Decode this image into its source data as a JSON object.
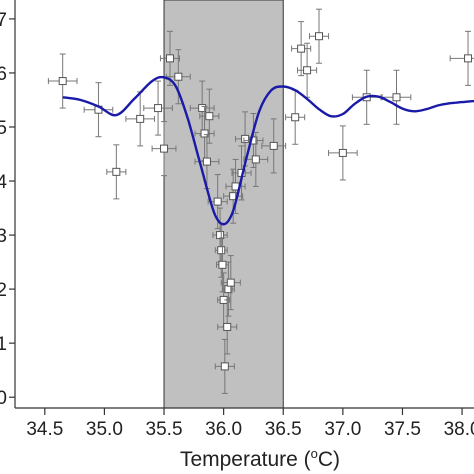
{
  "chart_data": {
    "type": "scatter",
    "title": "",
    "xlabel": "Temperature (",
    "xlabel_sup": "o",
    "xlabel_tail": "C)",
    "ylabel": "",
    "xlim": [
      34.25,
      38.1
    ],
    "ylim": [
      -0.2,
      7.35
    ],
    "x_ticks": [
      34.5,
      35.0,
      35.5,
      36.0,
      36.5,
      37.0,
      37.5,
      38.0
    ],
    "x_tick_labels": [
      "34.5",
      "35.0",
      "35.5",
      "36.0",
      "36.5",
      "37.0",
      "37.5",
      "38.0"
    ],
    "y_ticks": [
      0,
      1,
      2,
      3,
      4,
      5,
      6,
      7
    ],
    "y_tick_labels": [
      "0",
      "1",
      "2",
      "3",
      "4",
      "5",
      "6",
      "7"
    ],
    "grid": false,
    "shaded_region": {
      "x_start": 35.5,
      "x_end": 36.5,
      "color": "#c0c0c0"
    },
    "fit_curve": {
      "color": "#1a1aa8",
      "x": [
        34.65,
        34.8,
        34.95,
        35.1,
        35.25,
        35.4,
        35.5,
        35.6,
        35.7,
        35.8,
        35.9,
        35.95,
        36.0,
        36.05,
        36.1,
        36.2,
        36.3,
        36.4,
        36.5,
        36.6,
        36.7,
        36.8,
        36.9,
        37.0,
        37.1,
        37.2,
        37.3,
        37.4,
        37.5,
        37.6,
        37.7,
        37.8,
        37.9,
        38.0,
        38.1
      ],
      "y": [
        5.55,
        5.5,
        5.38,
        5.22,
        5.52,
        5.85,
        5.92,
        5.75,
        5.15,
        4.35,
        3.55,
        3.28,
        3.2,
        3.3,
        3.6,
        4.5,
        5.3,
        5.68,
        5.75,
        5.68,
        5.52,
        5.33,
        5.2,
        5.24,
        5.43,
        5.56,
        5.56,
        5.46,
        5.34,
        5.29,
        5.33,
        5.4,
        5.44,
        5.46,
        5.48
      ]
    },
    "points": [
      {
        "x": 34.65,
        "y": 5.85,
        "xerr": 0.12,
        "yerr": 0.5
      },
      {
        "x": 34.95,
        "y": 5.32,
        "xerr": 0.12,
        "yerr": 0.5
      },
      {
        "x": 35.1,
        "y": 4.17,
        "xerr": 0.08,
        "yerr": 0.5
      },
      {
        "x": 35.3,
        "y": 5.15,
        "xerr": 0.12,
        "yerr": 0.5
      },
      {
        "x": 35.45,
        "y": 5.35,
        "xerr": 0.12,
        "yerr": 0.5
      },
      {
        "x": 35.5,
        "y": 4.6,
        "xerr": 0.1,
        "yerr": 0.5
      },
      {
        "x": 35.55,
        "y": 6.27,
        "xerr": 0.08,
        "yerr": 0.5
      },
      {
        "x": 35.62,
        "y": 5.93,
        "xerr": 0.1,
        "yerr": 0.5
      },
      {
        "x": 35.82,
        "y": 5.35,
        "xerr": 0.1,
        "yerr": 0.5
      },
      {
        "x": 35.84,
        "y": 4.88,
        "xerr": 0.08,
        "yerr": 0.5
      },
      {
        "x": 35.86,
        "y": 4.36,
        "xerr": 0.1,
        "yerr": 0.5
      },
      {
        "x": 35.88,
        "y": 5.2,
        "xerr": 0.08,
        "yerr": 0.5
      },
      {
        "x": 35.95,
        "y": 3.62,
        "xerr": 0.08,
        "yerr": 0.5
      },
      {
        "x": 35.97,
        "y": 3.0,
        "xerr": 0.06,
        "yerr": 0.5
      },
      {
        "x": 35.98,
        "y": 2.72,
        "xerr": 0.05,
        "yerr": 0.5
      },
      {
        "x": 35.99,
        "y": 2.45,
        "xerr": 0.05,
        "yerr": 0.5
      },
      {
        "x": 36.0,
        "y": 1.8,
        "xerr": 0.05,
        "yerr": 0.5
      },
      {
        "x": 36.01,
        "y": 0.57,
        "xerr": 0.08,
        "yerr": 0.5
      },
      {
        "x": 36.03,
        "y": 1.3,
        "xerr": 0.08,
        "yerr": 0.5
      },
      {
        "x": 36.04,
        "y": 2.0,
        "xerr": 0.05,
        "yerr": 0.5
      },
      {
        "x": 36.06,
        "y": 2.12,
        "xerr": 0.08,
        "yerr": 0.5
      },
      {
        "x": 36.08,
        "y": 3.72,
        "xerr": 0.08,
        "yerr": 0.5
      },
      {
        "x": 36.1,
        "y": 3.9,
        "xerr": 0.08,
        "yerr": 0.5
      },
      {
        "x": 36.15,
        "y": 4.15,
        "xerr": 0.08,
        "yerr": 0.5
      },
      {
        "x": 36.18,
        "y": 4.78,
        "xerr": 0.08,
        "yerr": 0.5
      },
      {
        "x": 36.25,
        "y": 4.75,
        "xerr": 0.08,
        "yerr": 0.5
      },
      {
        "x": 36.27,
        "y": 4.4,
        "xerr": 0.1,
        "yerr": 0.5
      },
      {
        "x": 36.42,
        "y": 4.65,
        "xerr": 0.1,
        "yerr": 0.5
      },
      {
        "x": 36.6,
        "y": 5.18,
        "xerr": 0.08,
        "yerr": 0.5
      },
      {
        "x": 36.65,
        "y": 6.45,
        "xerr": 0.08,
        "yerr": 0.5
      },
      {
        "x": 36.7,
        "y": 6.05,
        "xerr": 0.08,
        "yerr": 0.5
      },
      {
        "x": 36.8,
        "y": 6.68,
        "xerr": 0.08,
        "yerr": 0.5
      },
      {
        "x": 37.0,
        "y": 4.52,
        "xerr": 0.12,
        "yerr": 0.5
      },
      {
        "x": 37.2,
        "y": 5.55,
        "xerr": 0.12,
        "yerr": 0.5
      },
      {
        "x": 37.45,
        "y": 5.55,
        "xerr": 0.12,
        "yerr": 0.5
      },
      {
        "x": 38.05,
        "y": 6.27,
        "xerr": 0.15,
        "yerr": 0.5
      }
    ]
  }
}
